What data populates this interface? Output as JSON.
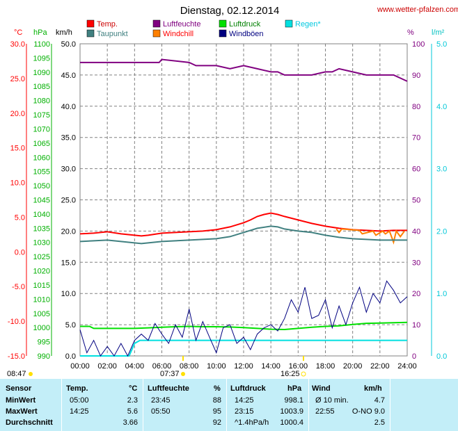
{
  "title": "Dienstag, 02.12.2014",
  "site": "www.wetter-pfalzen.com",
  "legend": [
    {
      "label": "Temp.",
      "color": "#ff0000"
    },
    {
      "label": "Luftfeuchte",
      "color": "#800080"
    },
    {
      "label": "Luftdruck",
      "color": "#00e000"
    },
    {
      "label": "Regen*",
      "color": "#00e0e0"
    },
    {
      "label": "Taupunkt",
      "color": "#408080"
    },
    {
      "label": "Windchill",
      "color": "#ff8000"
    },
    {
      "label": "Windböen",
      "color": "#000080"
    }
  ],
  "axis_units": {
    "temp": "°C",
    "pressure": "hPa",
    "wind": "km/h",
    "humidity": "%",
    "rain": "l/m²"
  },
  "sun": {
    "sunrise": "07:37",
    "sunset": "16:25",
    "moonrise": "08:47"
  },
  "chart_data": {
    "type": "line",
    "title": "Dienstag, 02.12.2014",
    "x_ticks": [
      "00:00",
      "02:00",
      "04:00",
      "06:00",
      "08:00",
      "10:00",
      "12:00",
      "14:00",
      "16:00",
      "18:00",
      "20:00",
      "22:00",
      "24:00"
    ],
    "axes": {
      "temp": {
        "unit": "°C",
        "range": [
          -15,
          30
        ],
        "ticks": [
          "30.0",
          "25.0",
          "20.0",
          "15.0",
          "10.0",
          "5.0",
          "0.0",
          "-5.0",
          "-10.0",
          "-15.0"
        ],
        "color": "#ff0000"
      },
      "pressure": {
        "unit": "hPa",
        "range": [
          990,
          1100
        ],
        "ticks": [
          "1100",
          "1095",
          "1090",
          "1085",
          "1080",
          "1075",
          "1070",
          "1065",
          "1060",
          "1055",
          "1050",
          "1045",
          "1040",
          "1035",
          "1030",
          "1025",
          "1020",
          "1015",
          "1010",
          "1005",
          "1000",
          "995",
          "990"
        ],
        "color": "#00c000"
      },
      "wind": {
        "unit": "km/h",
        "range": [
          0,
          50
        ],
        "ticks": [
          "50.0",
          "45.0",
          "40.0",
          "35.0",
          "30.0",
          "25.0",
          "20.0",
          "15.0",
          "10.0",
          "5.0",
          "0.0"
        ],
        "color": "#000000"
      },
      "humidity": {
        "unit": "%",
        "range": [
          0,
          100
        ],
        "ticks": [
          "100",
          "90",
          "80",
          "70",
          "60",
          "50",
          "40",
          "30",
          "20",
          "10",
          "0"
        ],
        "color": "#800080"
      },
      "rain": {
        "unit": "l/m²",
        "range": [
          0,
          5
        ],
        "ticks": [
          "5.0",
          "4.0",
          "3.0",
          "2.0",
          "1.0",
          "0.0"
        ],
        "color": "#00c0c0"
      }
    },
    "grid": true,
    "series": [
      {
        "name": "Temp.",
        "axis": "temp",
        "color": "#ff0000",
        "x": [
          0,
          1,
          2,
          3,
          4,
          4.5,
          5,
          6,
          7,
          8,
          9,
          10,
          11,
          12,
          12.5,
          13,
          13.5,
          14,
          14.5,
          15,
          16,
          17,
          18,
          19,
          20,
          21,
          22,
          23,
          24
        ],
        "y": [
          2.6,
          2.7,
          2.9,
          2.6,
          2.4,
          2.3,
          2.4,
          2.7,
          2.8,
          2.9,
          3.0,
          3.2,
          3.6,
          4.2,
          4.6,
          5.1,
          5.4,
          5.6,
          5.4,
          5.1,
          4.6,
          4.1,
          3.7,
          3.4,
          3.2,
          3.1,
          3.0,
          3.1,
          3.1
        ]
      },
      {
        "name": "Windchill",
        "axis": "temp",
        "color": "#ff8000",
        "x": [
          18.8,
          19.0,
          19.2,
          20.5,
          20.7,
          21.5,
          21.7,
          22.2,
          22.4,
          22.7,
          23.0,
          23.2,
          23.5,
          23.8
        ],
        "y": [
          3.3,
          2.8,
          3.3,
          3.1,
          2.6,
          3.0,
          2.4,
          3.0,
          2.6,
          3.0,
          1.4,
          3.0,
          2.2,
          3.0
        ]
      },
      {
        "name": "Taupunkt",
        "axis": "temp",
        "color": "#408080",
        "x": [
          0,
          1,
          2,
          3,
          4,
          4.5,
          5,
          6,
          7,
          8,
          9,
          10,
          11,
          12,
          13,
          14,
          14.5,
          15,
          16,
          17,
          18,
          19,
          20,
          21,
          22,
          23,
          24
        ],
        "y": [
          1.5,
          1.6,
          1.7,
          1.5,
          1.3,
          1.2,
          1.3,
          1.5,
          1.6,
          1.7,
          1.8,
          1.9,
          2.2,
          2.8,
          3.4,
          3.7,
          3.6,
          3.3,
          3.0,
          2.8,
          2.4,
          2.1,
          1.9,
          1.8,
          1.7,
          1.7,
          1.7
        ]
      },
      {
        "name": "Luftfeuchte",
        "axis": "humidity",
        "color": "#800080",
        "x": [
          0,
          2,
          4,
          5.8,
          6,
          8,
          8.5,
          10,
          11,
          12,
          13,
          14,
          14.5,
          15,
          16,
          17,
          18,
          18.5,
          19,
          20,
          21,
          22,
          23,
          24
        ],
        "y": [
          94,
          94,
          94,
          94,
          95,
          94,
          93,
          93,
          92,
          93,
          92,
          91,
          91,
          90,
          90,
          90,
          91,
          91,
          92,
          91,
          90,
          90,
          90,
          88
        ]
      },
      {
        "name": "Luftdruck",
        "axis": "pressure",
        "color": "#00e000",
        "x": [
          0,
          0.7,
          1,
          2,
          3,
          4,
          5,
          6,
          7,
          8,
          9,
          10,
          11,
          12,
          13,
          14,
          15,
          16,
          17,
          18,
          19,
          20,
          21,
          22,
          23,
          24
        ],
        "y": [
          1000.4,
          1000.4,
          999.7,
          999.7,
          999.7,
          999.7,
          999.9,
          1000.1,
          1000.3,
          1000.4,
          1000.3,
          1000.3,
          1000.2,
          1000.0,
          999.7,
          999.4,
          999.3,
          999.7,
          1000.1,
          1000.4,
          1000.6,
          1001.1,
          1001.5,
          1001.6,
          1001.7,
          1001.8
        ]
      },
      {
        "name": "Regen*",
        "axis": "rain",
        "color": "#00e0e0",
        "x": [
          0,
          3.6,
          4.0,
          4.4,
          24
        ],
        "y": [
          0,
          0,
          0.2,
          0.25,
          0.25
        ]
      },
      {
        "name": "Windböen",
        "axis": "wind",
        "color": "#000080",
        "x": [
          0,
          0.5,
          1,
          1.5,
          2,
          2.5,
          3,
          3.5,
          4,
          4.5,
          5,
          5.5,
          6,
          6.5,
          7,
          7.5,
          8,
          8.5,
          9,
          9.5,
          10,
          10.5,
          11,
          11.5,
          12,
          12.5,
          13,
          13.5,
          14,
          14.5,
          15,
          15.5,
          16,
          16.5,
          17,
          17.5,
          18,
          18.5,
          19,
          19.5,
          20,
          20.5,
          21,
          21.5,
          22,
          22.5,
          23,
          23.5,
          24
        ],
        "y": [
          4.2,
          0.5,
          2.5,
          0.0,
          1.5,
          0.0,
          2.0,
          0.0,
          2.5,
          3.5,
          2.5,
          5.2,
          3.5,
          2.0,
          5.0,
          3.0,
          7.5,
          2.5,
          5.5,
          3.0,
          0.5,
          4.5,
          5.0,
          2.0,
          3.0,
          1.0,
          3.5,
          4.5,
          5.0,
          4.0,
          6.0,
          9.0,
          7.0,
          11.0,
          6.0,
          6.5,
          9.0,
          4.5,
          8.0,
          5.0,
          8.5,
          11.0,
          7.0,
          10.0,
          8.5,
          12.0,
          10.5,
          8.5,
          9.5
        ]
      }
    ]
  },
  "stats": {
    "headers": {
      "sensor": "Sensor",
      "temp": "Temp.",
      "temp_unit": "°C",
      "hum": "Luftfeuchte",
      "hum_unit": "%",
      "press": "Luftdruck",
      "press_unit": "hPa",
      "wind": "Wind",
      "wind_unit": "km/h"
    },
    "rows": [
      {
        "label": "MinWert",
        "temp_time": "05:00",
        "temp_val": "2.3",
        "hum_time": "23:45",
        "hum_val": "88",
        "press_time": "14:25",
        "press_val": "998.1",
        "wind_label": "Ø 10 min.",
        "wind_val": "4.7"
      },
      {
        "label": "MaxWert",
        "temp_time": "14:25",
        "temp_val": "5.6",
        "hum_time": "05:50",
        "hum_val": "95",
        "press_time": "23:15",
        "press_val": "1003.9",
        "wind_label": "22:55",
        "wind_val": "O-NO 9.0"
      },
      {
        "label": "Durchschnitt",
        "temp_time": "",
        "temp_val": "3.66",
        "hum_time": "",
        "hum_val": "92",
        "press_time": "^1.4hPa/h",
        "press_val": "1000.4",
        "wind_label": "",
        "wind_val": "2.5"
      }
    ]
  }
}
